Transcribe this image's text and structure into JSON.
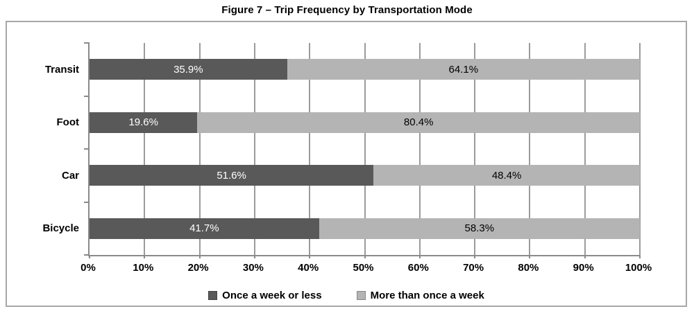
{
  "chart_data": {
    "type": "bar",
    "subtype": "horizontal_stacked",
    "title": "Figure 7 – Trip Frequency by Transportation Mode",
    "categories": [
      "Transit",
      "Foot",
      "Car",
      "Bicycle"
    ],
    "series": [
      {
        "name": "Once a week or less",
        "color": "#595959",
        "label_color": "#ffffff",
        "values": [
          35.9,
          19.6,
          51.6,
          41.7
        ],
        "labels": [
          "35.9%",
          "19.6%",
          "51.6%",
          "41.7%"
        ]
      },
      {
        "name": "More than once a week",
        "color": "#b4b4b4",
        "label_color": "#000000",
        "values": [
          64.1,
          80.4,
          48.4,
          58.3
        ],
        "labels": [
          "64.1%",
          "80.4%",
          "48.4%",
          "58.3%"
        ]
      }
    ],
    "x_axis": {
      "min": 0,
      "max": 100,
      "tick_step": 10,
      "tick_labels": [
        "0%",
        "10%",
        "20%",
        "30%",
        "40%",
        "50%",
        "60%",
        "70%",
        "80%",
        "90%",
        "100%"
      ]
    },
    "grid": true,
    "legend_position": "bottom",
    "colors": {
      "gridline": "#9b9b9b",
      "axis": "#8a8a8a",
      "frame_border": "#a7a7a7",
      "background": "#ffffff"
    }
  }
}
